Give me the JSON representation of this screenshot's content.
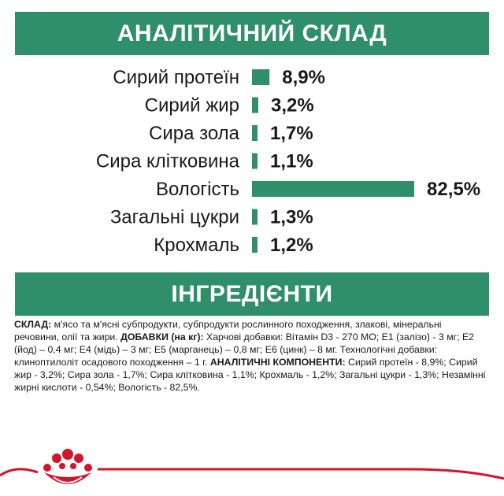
{
  "headings": {
    "analysis": "АНАЛІТИЧНИЙ СКЛАД",
    "ingredients": "ІНГРЕДІЄНТИ"
  },
  "chart_data": {
    "type": "bar",
    "orientation": "horizontal",
    "categories": [
      "Сирий протеїн",
      "Сирий жир",
      "Сира зола",
      "Сира клітковина",
      "Вологість",
      "Загальні цукри",
      "Крохмаль"
    ],
    "values": [
      8.9,
      3.2,
      1.7,
      1.1,
      82.5,
      1.3,
      1.2
    ],
    "value_labels": [
      "8,9%",
      "3,2%",
      "1,7%",
      "1,1%",
      "82,5%",
      "1,3%",
      "1,2%"
    ],
    "xlim": [
      0,
      82.5
    ],
    "grid": false,
    "bar_color": "#2f8f6a"
  },
  "composition": {
    "label1": "СКЛАД:",
    "text1": " м'ясо та м'ясні субпродукти, субпродукти рослинного походження, злакові, мінеральні речовини, олії та жири. ",
    "label2": "ДОБАВКИ (на кг):",
    "text2": " Харчові добавки: Вітамін D3 - 270 МО; Е1 (залізо) - 3 мг; Е2 (йод) – 0,4 мг; Е4 (мідь) – 3 мг; Е5 (марганець) – 0,8 мг; Е6 (цинк) – 8 мг. Технологічні добавки: клиноптилоліт осадового походження – 1 г. ",
    "label3": "АНАЛІТИЧНІ КОМПОНЕНТИ:",
    "text3": " Сирий протеїн - 8,9%; Сирий жир - 3,2%; Сира зола - 1,7%; Сира клітковина - 1,1%; Крохмаль - 1,2%; Загальні цукри - 1,3%; Незамінні жирні кислоти - 0,54%; Вологість - 82,5%."
  },
  "colors": {
    "brand_green": "#2f8f6a",
    "brand_red": "#d3142b"
  },
  "footer": {
    "logo_icon": "royal-canin-crown-logo"
  }
}
